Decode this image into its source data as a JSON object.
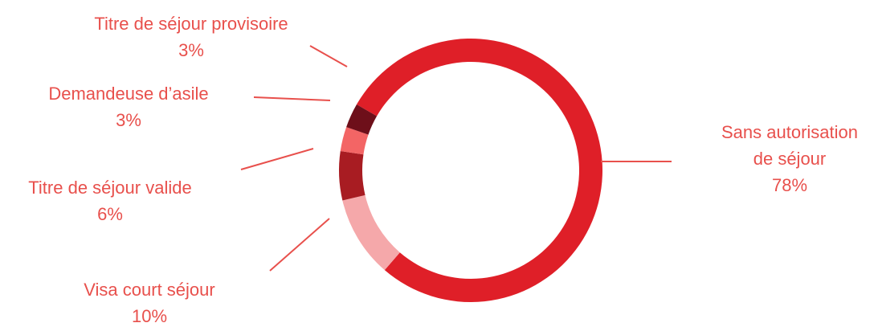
{
  "chart_data": {
    "type": "pie",
    "style": "donut",
    "categories": [
      "Sans autorisation de séjour",
      "Visa court séjour",
      "Titre de séjour valide",
      "Demandeuse d’asile",
      "Titre de séjour provisoire"
    ],
    "values": [
      78,
      10,
      6,
      3,
      3
    ],
    "value_labels": [
      "78%",
      "10%",
      "6%",
      "3%",
      "3%"
    ],
    "label_lines": [
      [
        "Sans autorisation",
        "de séjour",
        "78%"
      ],
      [
        "Visa court séjour",
        "10%"
      ],
      [
        "Titre de séjour valide",
        "6%"
      ],
      [
        "Demandeuse d’asile",
        "3%"
      ],
      [
        "Titre de séjour provisoire",
        "3%"
      ]
    ],
    "colors": [
      "#df1f28",
      "#f5a8aa",
      "#a81c22",
      "#f36565",
      "#6e0f1a"
    ],
    "label_color": "#e8504c",
    "leader_color": "#e8504c",
    "legend": "none"
  }
}
